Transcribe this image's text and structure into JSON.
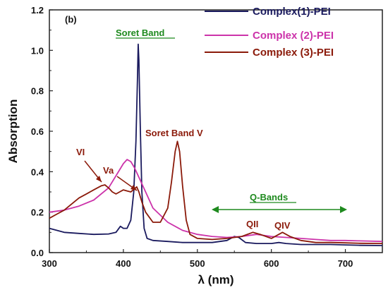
{
  "chart_data": {
    "type": "line",
    "panel_label": "(b)",
    "xlabel": "λ (nm)",
    "ylabel": "Absorption",
    "xlim": [
      300,
      750
    ],
    "ylim": [
      0.0,
      1.2
    ],
    "xticks": [
      300,
      400,
      500,
      600,
      700
    ],
    "yticks": [
      "0.0",
      "0.2",
      "0.4",
      "0.6",
      "0.8",
      "1.0",
      "1.2"
    ],
    "legend_position": "top-right",
    "series": [
      {
        "name": "Complex(1)-PEI",
        "color": "#1a1a5e",
        "points": [
          [
            300,
            0.12
          ],
          [
            320,
            0.1
          ],
          [
            340,
            0.095
          ],
          [
            360,
            0.09
          ],
          [
            380,
            0.092
          ],
          [
            390,
            0.1
          ],
          [
            396,
            0.13
          ],
          [
            400,
            0.12
          ],
          [
            405,
            0.12
          ],
          [
            410,
            0.16
          ],
          [
            414,
            0.3
          ],
          [
            417,
            0.55
          ],
          [
            419,
            0.85
          ],
          [
            420,
            1.03
          ],
          [
            421,
            0.95
          ],
          [
            423,
            0.6
          ],
          [
            425,
            0.3
          ],
          [
            428,
            0.12
          ],
          [
            432,
            0.07
          ],
          [
            440,
            0.06
          ],
          [
            460,
            0.055
          ],
          [
            480,
            0.05
          ],
          [
            500,
            0.05
          ],
          [
            520,
            0.05
          ],
          [
            540,
            0.06
          ],
          [
            550,
            0.08
          ],
          [
            556,
            0.075
          ],
          [
            565,
            0.05
          ],
          [
            580,
            0.045
          ],
          [
            600,
            0.045
          ],
          [
            610,
            0.05
          ],
          [
            620,
            0.045
          ],
          [
            640,
            0.04
          ],
          [
            660,
            0.04
          ],
          [
            680,
            0.04
          ],
          [
            700,
            0.038
          ],
          [
            720,
            0.036
          ],
          [
            750,
            0.035
          ]
        ]
      },
      {
        "name": "Complex (2)-PEI",
        "color": "#cc33aa",
        "points": [
          [
            300,
            0.2
          ],
          [
            320,
            0.21
          ],
          [
            340,
            0.23
          ],
          [
            360,
            0.26
          ],
          [
            380,
            0.32
          ],
          [
            390,
            0.38
          ],
          [
            400,
            0.44
          ],
          [
            405,
            0.46
          ],
          [
            410,
            0.45
          ],
          [
            415,
            0.42
          ],
          [
            420,
            0.38
          ],
          [
            430,
            0.3
          ],
          [
            440,
            0.22
          ],
          [
            460,
            0.15
          ],
          [
            480,
            0.11
          ],
          [
            500,
            0.09
          ],
          [
            520,
            0.08
          ],
          [
            540,
            0.075
          ],
          [
            560,
            0.08
          ],
          [
            580,
            0.09
          ],
          [
            600,
            0.08
          ],
          [
            620,
            0.075
          ],
          [
            640,
            0.07
          ],
          [
            660,
            0.065
          ],
          [
            680,
            0.06
          ],
          [
            700,
            0.06
          ],
          [
            720,
            0.058
          ],
          [
            750,
            0.055
          ]
        ]
      },
      {
        "name": "Complex (3)-PEI",
        "color": "#8b1a0a",
        "points": [
          [
            300,
            0.17
          ],
          [
            310,
            0.19
          ],
          [
            320,
            0.21
          ],
          [
            330,
            0.24
          ],
          [
            340,
            0.27
          ],
          [
            350,
            0.29
          ],
          [
            360,
            0.31
          ],
          [
            370,
            0.33
          ],
          [
            375,
            0.335
          ],
          [
            380,
            0.32
          ],
          [
            385,
            0.3
          ],
          [
            390,
            0.29
          ],
          [
            395,
            0.3
          ],
          [
            400,
            0.31
          ],
          [
            405,
            0.305
          ],
          [
            410,
            0.3
          ],
          [
            415,
            0.315
          ],
          [
            418,
            0.325
          ],
          [
            421,
            0.3
          ],
          [
            425,
            0.25
          ],
          [
            430,
            0.2
          ],
          [
            440,
            0.15
          ],
          [
            450,
            0.15
          ],
          [
            460,
            0.22
          ],
          [
            465,
            0.35
          ],
          [
            470,
            0.5
          ],
          [
            473,
            0.55
          ],
          [
            476,
            0.5
          ],
          [
            480,
            0.33
          ],
          [
            485,
            0.16
          ],
          [
            490,
            0.09
          ],
          [
            500,
            0.07
          ],
          [
            520,
            0.065
          ],
          [
            540,
            0.07
          ],
          [
            560,
            0.08
          ],
          [
            575,
            0.1
          ],
          [
            585,
            0.09
          ],
          [
            600,
            0.07
          ],
          [
            615,
            0.1
          ],
          [
            625,
            0.08
          ],
          [
            640,
            0.06
          ],
          [
            660,
            0.05
          ],
          [
            680,
            0.05
          ],
          [
            700,
            0.048
          ],
          [
            720,
            0.046
          ],
          [
            750,
            0.045
          ]
        ]
      }
    ],
    "annotations": {
      "soret_band": "Soret Band",
      "soret_band_v": "Soret Band V",
      "vi": "VI",
      "va": "Va",
      "q_bands": "Q-Bands",
      "qii": "QII",
      "qiv": "QIV"
    },
    "annotation_colors": {
      "green": "#1e8a1e",
      "brown": "#8b1a0a"
    }
  }
}
